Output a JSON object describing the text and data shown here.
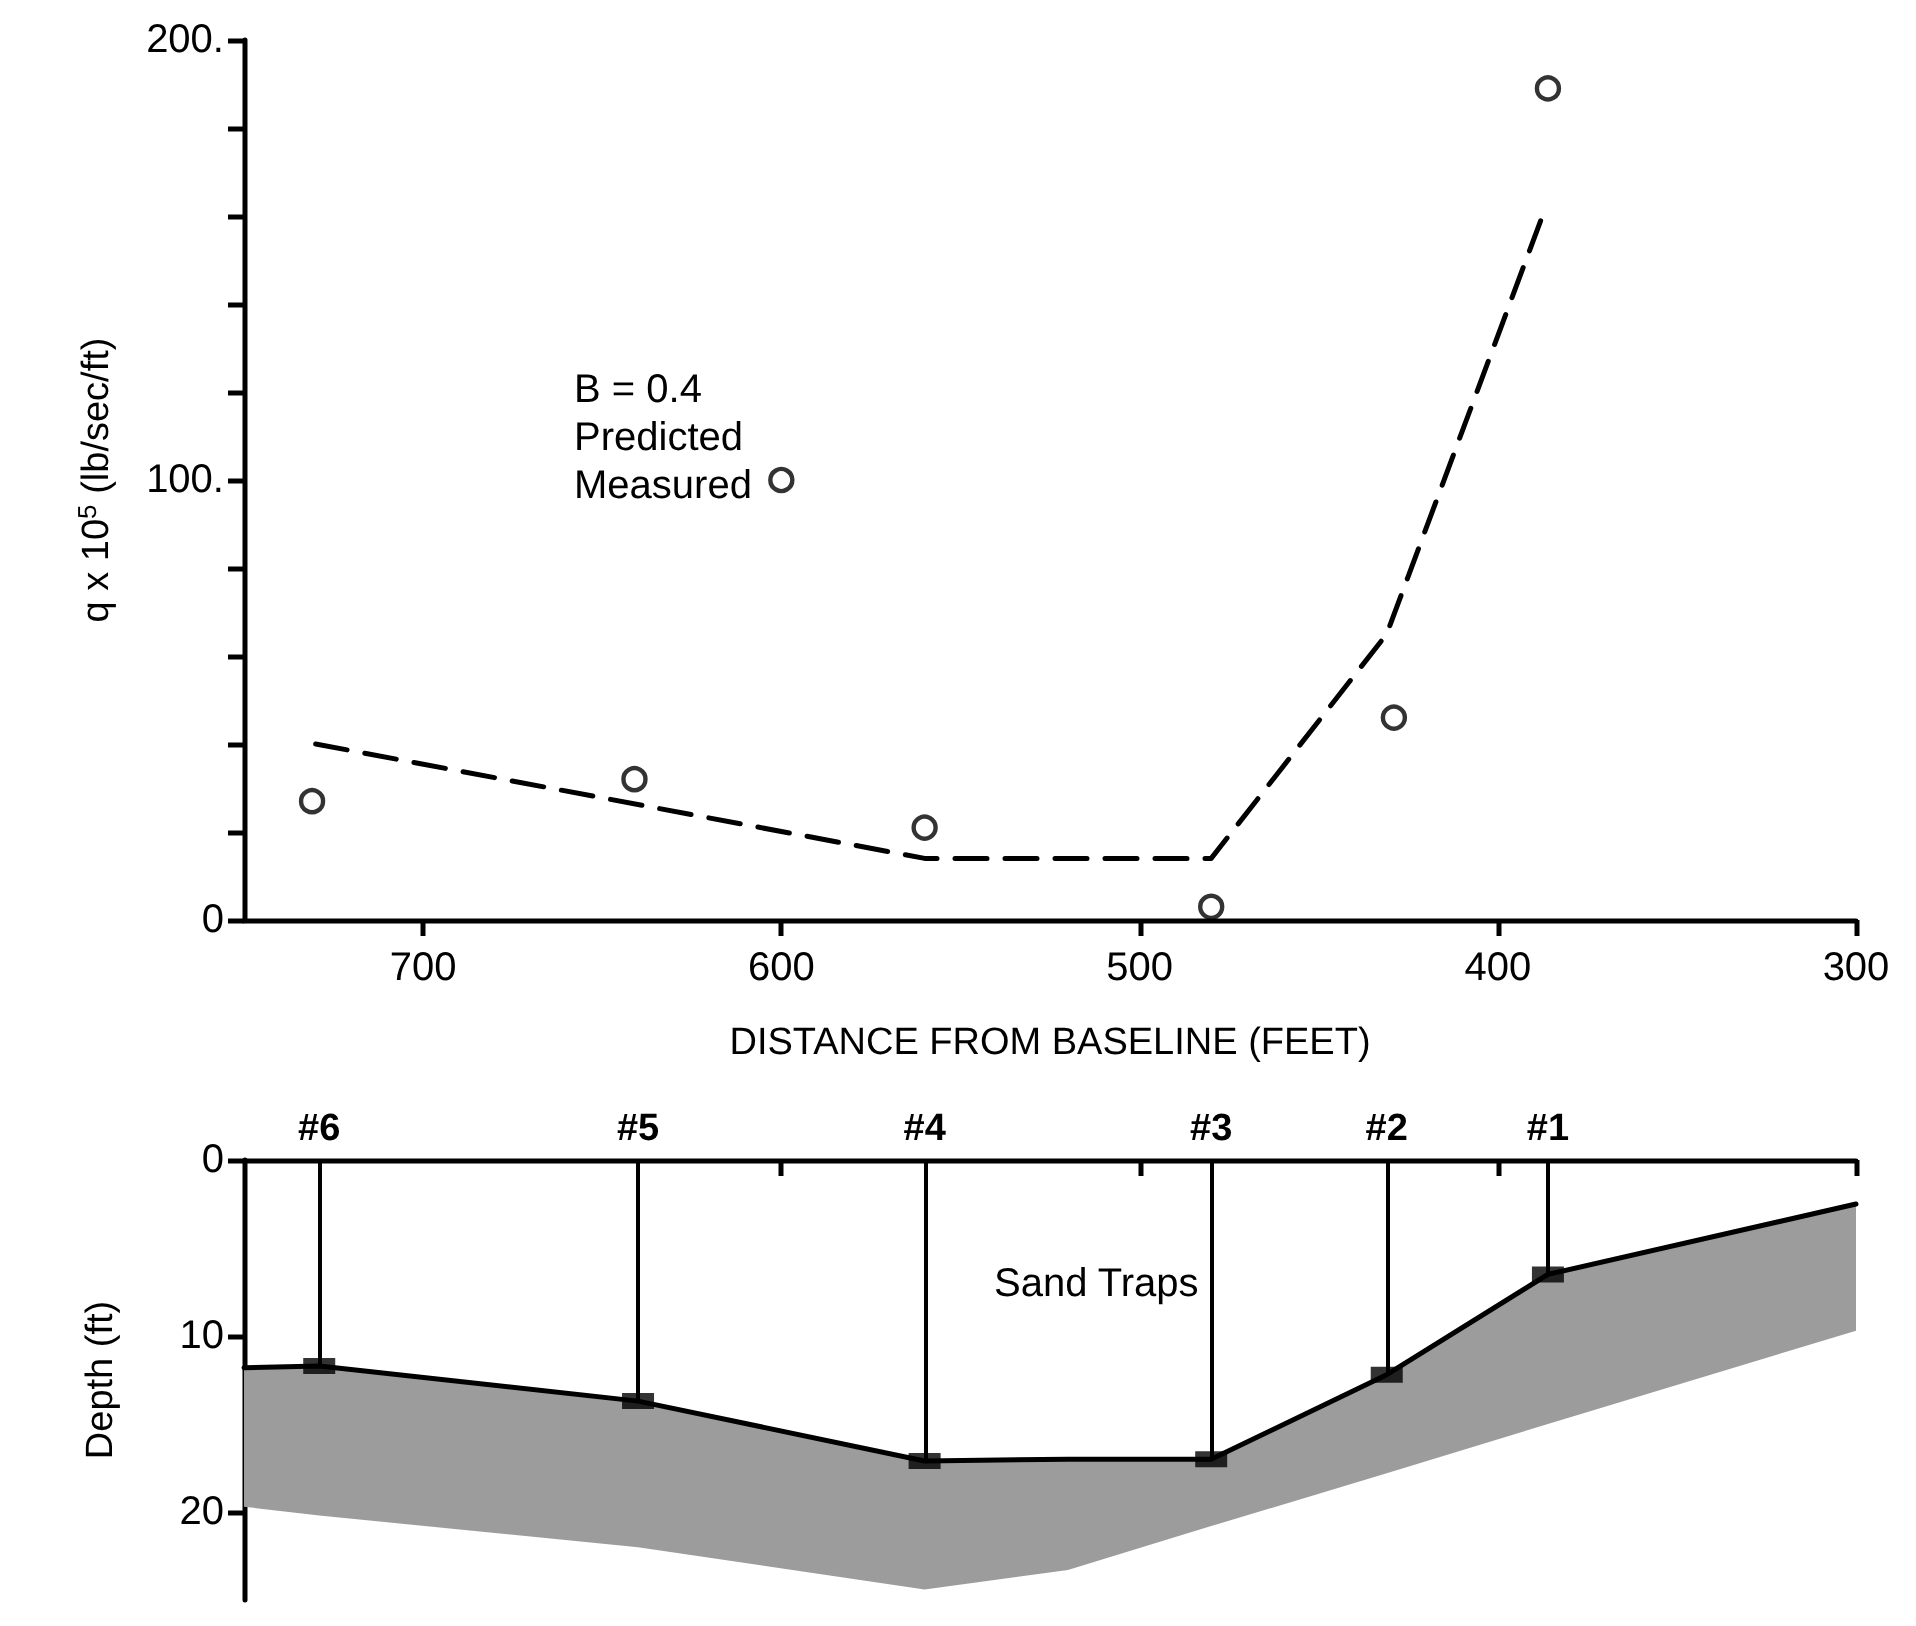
{
  "chart_data": [
    {
      "type": "line",
      "xlabel": "DISTANCE FROM BASELINE (FEET)",
      "ylabel": "q x 10$^{5}$ (lb/sec/ft)",
      "xlim": [
        750,
        300
      ],
      "xticks": [
        700,
        600,
        500,
        400,
        300
      ],
      "ylim": [
        0,
        200
      ],
      "yticks": [
        0,
        {
          "value": 20,
          "label": null
        },
        {
          "value": 40,
          "label": null
        },
        {
          "value": 60,
          "label": null
        },
        {
          "value": 80,
          "label": null
        },
        {
          "value": 100,
          "label": "100."
        },
        {
          "value": 120,
          "label": null
        },
        {
          "value": 140,
          "label": null
        },
        {
          "value": 160,
          "label": null
        },
        {
          "value": 180,
          "label": null
        },
        {
          "value": 200,
          "label": "200."
        }
      ],
      "grid": false,
      "annotations": [
        "B = 0.4",
        "Predicted",
        "Measured"
      ],
      "series": [
        {
          "color": "#000000",
          "line_style": "dashed",
          "marker": "none",
          "x": [
            730,
            560,
            480,
            431,
            388
          ],
          "values": [
            40,
            14,
            14,
            65,
            159
          ]
        },
        {
          "type": "scatter",
          "color": "#000000",
          "marker": "circle",
          "x": [
            731,
            641,
            600,
            560,
            480,
            429,
            386
          ],
          "values": [
            27,
            32,
            100,
            21,
            3,
            46,
            189
          ]
        }
      ]
    },
    {
      "type": "line",
      "ylabel": "Depth (ft)",
      "xlim": [
        750,
        300
      ],
      "xticks": [
        {
          "value": 600,
          "label": null
        },
        {
          "value": 500,
          "label": null
        },
        {
          "value": 400,
          "label": null
        },
        {
          "value": 300,
          "label": null
        }
      ],
      "ylim": [
        25,
        0
      ],
      "yticks": [
        0,
        10,
        20
      ],
      "tick_labels": "y",
      "grid": false,
      "annotations": [
        "Sand Traps",
        {
          "text": "#6",
          "x": 729,
          "y": 0
        },
        {
          "text": "#5",
          "x": 640,
          "y": 0
        },
        {
          "text": "#4",
          "x": 560,
          "y": 0
        },
        {
          "text": "#3",
          "x": 480,
          "y": 0
        },
        {
          "text": "#2",
          "x": 431,
          "y": 0
        },
        {
          "text": "#1",
          "x": 386,
          "y": 0
        }
      ],
      "ref_lines": [
        {
          "axis": "x",
          "value": 729
        },
        {
          "axis": "x",
          "value": 640
        },
        {
          "axis": "x",
          "value": 560
        },
        {
          "axis": "x",
          "value": 480
        },
        {
          "axis": "x",
          "value": 431
        },
        {
          "axis": "x",
          "value": 386
        }
      ],
      "series": [
        {
          "color": "#000000",
          "marker": "none",
          "x": [
            750,
            729,
            640,
            560,
            520,
            480,
            431,
            386,
            300
          ],
          "values": [
            11.8,
            11.7,
            13.7,
            17.1,
            17,
            17,
            12.2,
            6.5,
            2.5
          ],
          "upper": [
            11.8,
            11.7,
            13.7,
            17.1,
            17,
            17,
            12.2,
            6.5,
            2.5
          ],
          "lower": [
            19.7,
            20.2,
            22,
            24.4,
            23.3,
            20.8,
            17.8,
            15,
            9.7
          ]
        },
        {
          "type": "scatter",
          "color": "#000000",
          "marker": "square",
          "x": [
            729,
            640,
            560,
            480,
            431,
            386
          ],
          "values": [
            11.7,
            13.7,
            17.1,
            17,
            12.2,
            6.5
          ]
        }
      ]
    }
  ]
}
